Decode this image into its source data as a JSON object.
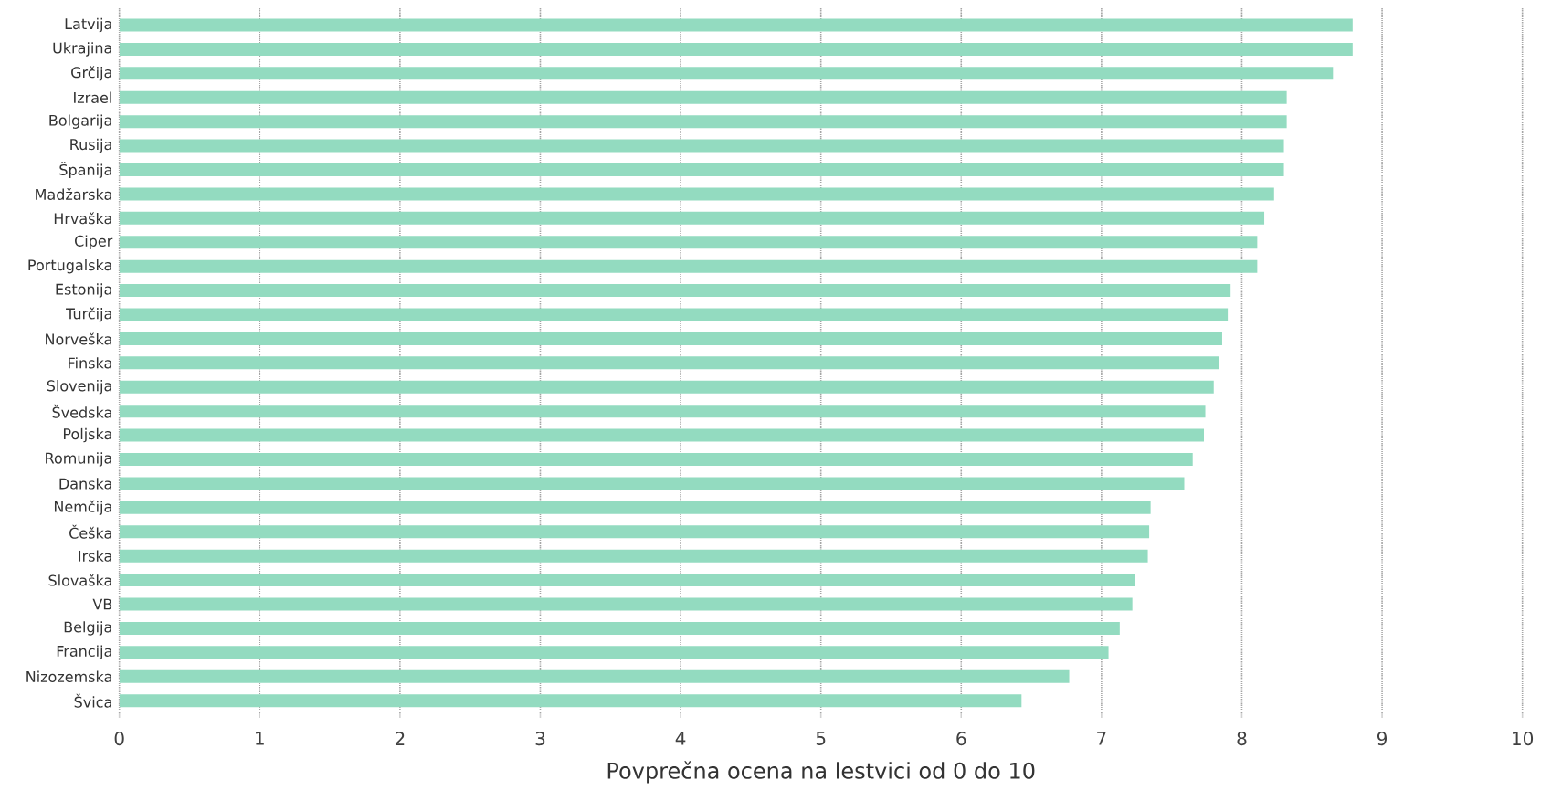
{
  "chart_data": {
    "type": "bar",
    "orientation": "horizontal",
    "xlabel": "Povprečna ocena na lestvici od 0 do 10",
    "categories": [
      "Latvija",
      "Ukrajina",
      "Grčija",
      "Izrael",
      "Bolgarija",
      "Rusija",
      "Španija",
      "Madžarska",
      "Hrvaška",
      "Ciper",
      "Portugalska",
      "Estonija",
      "Turčija",
      "Norveška",
      "Finska",
      "Slovenija",
      "Švedska",
      "Poljska",
      "Romunija",
      "Danska",
      "Nemčija",
      "Češka",
      "Irska",
      "Slovaška",
      "VB",
      "Belgija",
      "Francija",
      "Nizozemska",
      "Švica"
    ],
    "values": [
      8.79,
      8.79,
      8.65,
      8.32,
      8.32,
      8.3,
      8.3,
      8.23,
      8.16,
      8.11,
      8.11,
      7.92,
      7.9,
      7.86,
      7.84,
      7.8,
      7.74,
      7.73,
      7.65,
      7.59,
      7.35,
      7.34,
      7.33,
      7.24,
      7.22,
      7.13,
      7.05,
      6.77,
      6.43
    ],
    "color": "#93dbc0",
    "xlim": [
      0,
      10
    ],
    "xticks": [
      0,
      1,
      2,
      3,
      4,
      5,
      6,
      7,
      8,
      9,
      10
    ],
    "grid": "x"
  }
}
